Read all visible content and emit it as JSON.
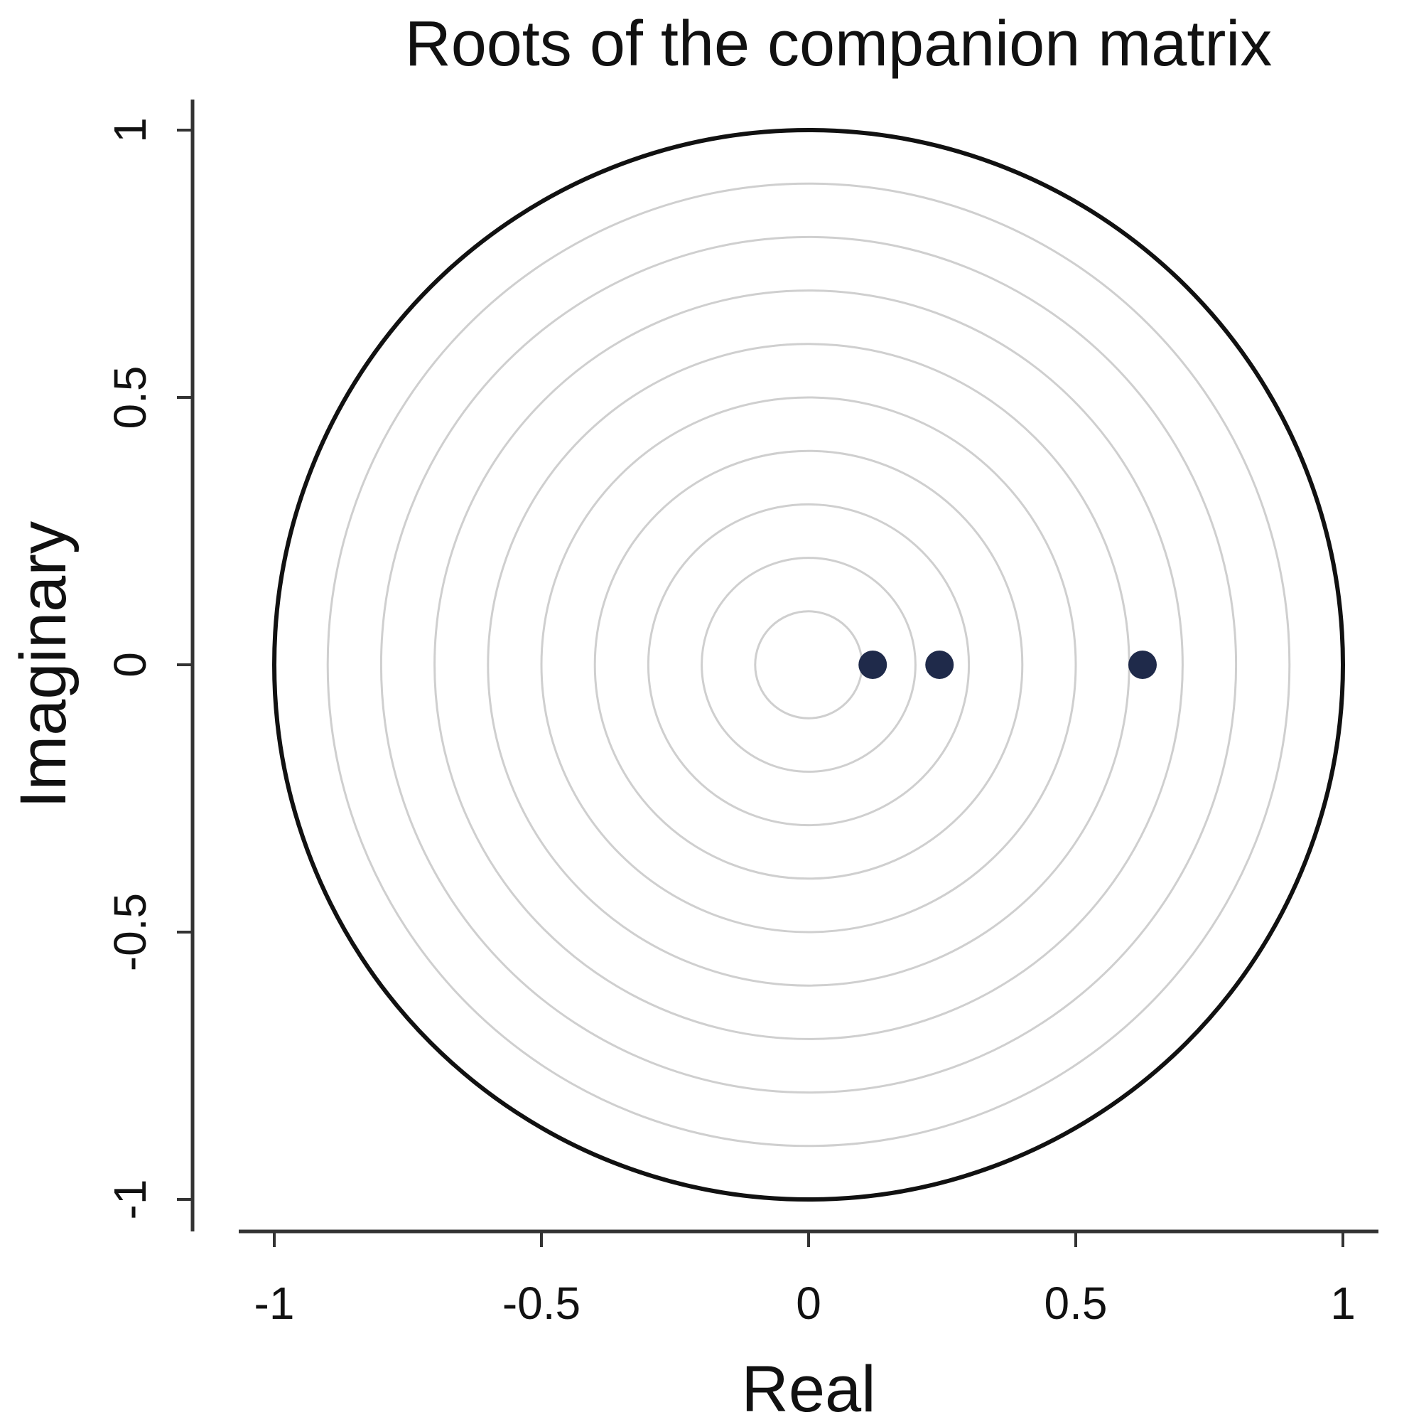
{
  "chart_data": {
    "type": "scatter",
    "title": "Roots of the companion matrix",
    "xlabel": "Real",
    "ylabel": "Imaginary",
    "xlim": [
      -1,
      1
    ],
    "ylim": [
      -1,
      1
    ],
    "x_ticks": [
      {
        "value": -1,
        "label": "-1"
      },
      {
        "value": -0.5,
        "label": "-0.5"
      },
      {
        "value": 0,
        "label": "0"
      },
      {
        "value": 0.5,
        "label": "0.5"
      },
      {
        "value": 1,
        "label": "1"
      }
    ],
    "y_ticks": [
      {
        "value": -1,
        "label": "-1"
      },
      {
        "value": -0.5,
        "label": "-0.5"
      },
      {
        "value": 0,
        "label": "0"
      },
      {
        "value": 0.5,
        "label": "0.5"
      },
      {
        "value": 1,
        "label": "1"
      }
    ],
    "grid": true,
    "grid_style": "concentric circles",
    "grid_radii": [
      0.1,
      0.2,
      0.3,
      0.4,
      0.5,
      0.6,
      0.7,
      0.8,
      0.9
    ],
    "unit_circle_radius": 1,
    "series": [
      {
        "x": [
          0.12,
          0.245,
          0.625
        ],
        "y": [
          0,
          0,
          0
        ]
      }
    ],
    "marker_color": "#1f2a4a"
  }
}
